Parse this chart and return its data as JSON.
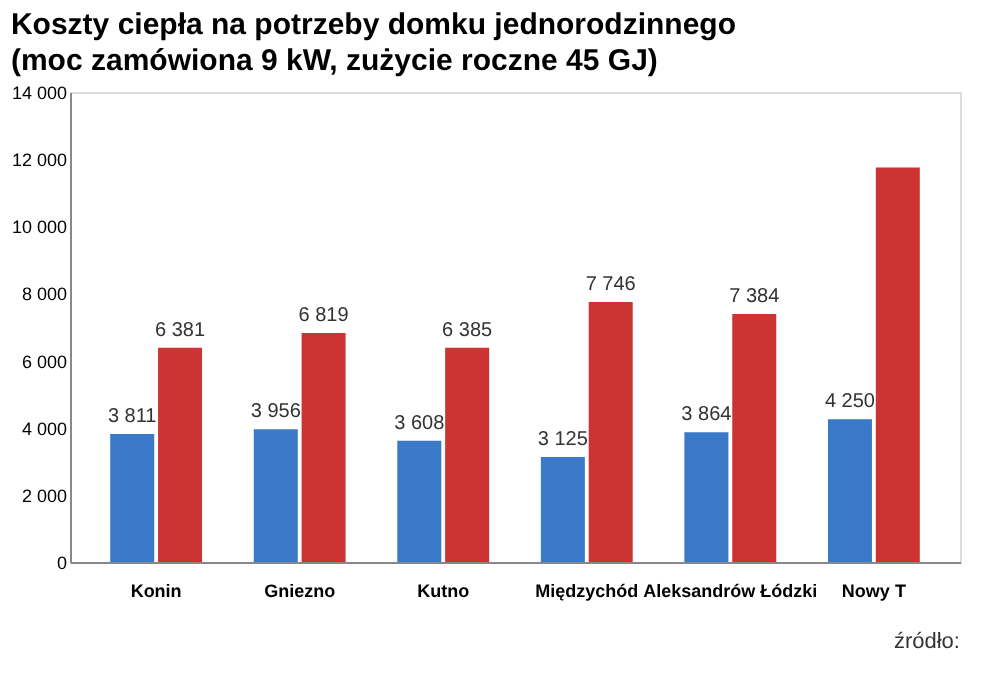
{
  "chart_data": {
    "type": "bar",
    "title": "Koszty ciepła na potrzeby domku jednorodzinnego",
    "subtitle": "(moc zamówiona 9 kW, zużycie roczne 45 GJ)",
    "categories": [
      "Konin",
      "Gniezno",
      "Kutno",
      "Międzychód",
      "Aleksandrów Łódzki",
      "Nowy T"
    ],
    "series": [
      {
        "color": "#3a78c8",
        "values": [
          3811,
          3956,
          3608,
          3125,
          3864,
          4250
        ],
        "value_labels": [
          "3 811",
          "3 956",
          "3 608",
          "3 125",
          "3 864",
          "4 250"
        ]
      },
      {
        "color": "#cc3333",
        "values": [
          6381,
          6819,
          6385,
          7746,
          7384,
          11750
        ],
        "value_labels": [
          "6 381",
          "6 819",
          "6 385",
          "7 746",
          "7 384",
          null
        ]
      }
    ],
    "ylim": [
      0,
      14000
    ],
    "yticks": [
      {
        "value": 0,
        "label": "0"
      },
      {
        "value": 2000,
        "label": "2 000"
      },
      {
        "value": 4000,
        "label": "4 000"
      },
      {
        "value": 6000,
        "label": "6 000"
      },
      {
        "value": 8000,
        "label": "8 000"
      },
      {
        "value": 10000,
        "label": "10 000"
      },
      {
        "value": 12000,
        "label": "12 000"
      },
      {
        "value": 14000,
        "label": "14 000"
      }
    ],
    "grid": false,
    "legend": false,
    "annotations": [
      "źródło:"
    ]
  }
}
